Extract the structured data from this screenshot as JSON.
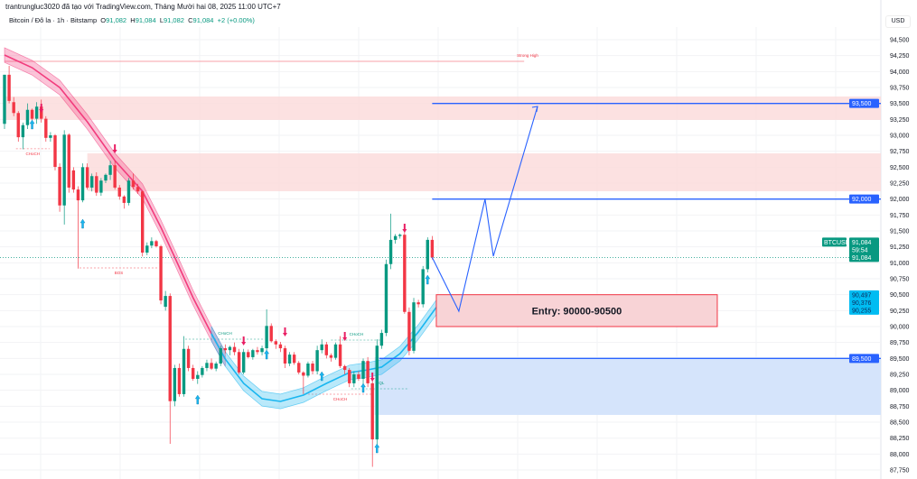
{
  "header": {
    "attribution": "trantrungluc3020 đã tạo với TradingView.com, Tháng Mười hai 08, 2025 11:00 UTC+7",
    "symbol_line": "Bitcoin / Đô la · 1h · Bitstamp",
    "open_label": "O",
    "open": "91,082",
    "high_label": "H",
    "high": "91,084",
    "low_label": "L",
    "low": "91,082",
    "close_label": "C",
    "close": "91,084",
    "change": "+2 (+0.00%)"
  },
  "axis": {
    "currency": "USD",
    "ticks": [
      "94,500",
      "94,250",
      "94,000",
      "93,750",
      "93,500",
      "93,250",
      "93,000",
      "92,750",
      "92,500",
      "92,250",
      "92,000",
      "91,750",
      "91,500",
      "91,250",
      "91,000",
      "90,750",
      "90,500",
      "90,250",
      "90,000",
      "89,750",
      "89,500",
      "89,250",
      "89,000",
      "88,750",
      "88,500",
      "88,250",
      "88,000",
      "87,750"
    ]
  },
  "price_badges": {
    "symbol": "BTCUSD",
    "last_price": "91,084",
    "countdown": "59:54",
    "last_price_2": "91,084",
    "band_values": [
      "90,497",
      "90,376",
      "90,255"
    ],
    "levels": [
      "93,500",
      "92,000",
      "89,500"
    ]
  },
  "colors": {
    "up": "#089981",
    "down": "#f23645",
    "supply_zone": "#fbdcdc",
    "demand_zone": "#d3e3fb",
    "level_line": "#2962ff",
    "band_down": "#f23c7d",
    "band_up": "#19b6f0",
    "badge_blue": "#2962ff",
    "badge_cyan": "#00bcf2"
  },
  "chart_data": {
    "type": "candlestick",
    "symbol": "BTCUSD",
    "timeframe": "1h",
    "ylim": [
      87750,
      94600
    ],
    "grid": true,
    "ohlc": [
      [
        93180,
        93950,
        93100,
        93950
      ],
      [
        93950,
        94090,
        93500,
        93540
      ],
      [
        93520,
        93600,
        93300,
        93350
      ],
      [
        93350,
        93380,
        92900,
        92970
      ],
      [
        92970,
        93200,
        92780,
        93160
      ],
      [
        93160,
        93500,
        93100,
        93400
      ],
      [
        93400,
        93420,
        93200,
        93260
      ],
      [
        93260,
        93520,
        93180,
        93450
      ],
      [
        93450,
        93560,
        93200,
        93260
      ],
      [
        93260,
        93300,
        92900,
        92960
      ],
      [
        92960,
        93050,
        92900,
        93000
      ],
      [
        93000,
        93020,
        92450,
        92505
      ],
      [
        92505,
        92560,
        91800,
        91900
      ],
      [
        91900,
        93080,
        91600,
        93010
      ],
      [
        93010,
        93030,
        92100,
        92180
      ],
      [
        92450,
        92500,
        92100,
        92150
      ],
      [
        92150,
        92200,
        90910,
        91980
      ],
      [
        91980,
        92560,
        91950,
        92500
      ],
      [
        92500,
        92560,
        92150,
        92180
      ],
      [
        92180,
        92400,
        92120,
        92360
      ],
      [
        92360,
        92420,
        92050,
        92100
      ],
      [
        92100,
        92330,
        92050,
        92290
      ],
      [
        92290,
        92400,
        92250,
        92380
      ],
      [
        92380,
        92600,
        92300,
        92530
      ],
      [
        92530,
        92600,
        92150,
        92180
      ],
      [
        92180,
        92220,
        91990,
        92040
      ],
      [
        92040,
        92060,
        91850,
        91940
      ],
      [
        91940,
        92330,
        91900,
        92290
      ],
      [
        92290,
        92400,
        92150,
        92190
      ],
      [
        92190,
        92240,
        92080,
        92120
      ],
      [
        92120,
        92130,
        91100,
        91160
      ],
      [
        91160,
        91320,
        91120,
        91270
      ],
      [
        91270,
        91400,
        91230,
        91340
      ],
      [
        91340,
        91360,
        91240,
        91260
      ],
      [
        91260,
        91280,
        90350,
        90410
      ],
      [
        90310,
        90560,
        90250,
        90480
      ],
      [
        90480,
        90520,
        88160,
        88830
      ],
      [
        88830,
        89400,
        88750,
        89350
      ],
      [
        89350,
        89420,
        88900,
        88940
      ],
      [
        88940,
        89850,
        88900,
        89650
      ],
      [
        89650,
        89700,
        89300,
        89350
      ],
      [
        89350,
        89400,
        89150,
        89180
      ],
      [
        89180,
        89300,
        89100,
        89240
      ],
      [
        89240,
        89380,
        89200,
        89350
      ],
      [
        89350,
        89480,
        89300,
        89430
      ],
      [
        89430,
        89500,
        89320,
        89340
      ],
      [
        89340,
        89450,
        89300,
        89420
      ],
      [
        89420,
        89700,
        89380,
        89660
      ],
      [
        89660,
        89720,
        89580,
        89630
      ],
      [
        89630,
        89700,
        89550,
        89680
      ],
      [
        89680,
        89750,
        89550,
        89600
      ],
      [
        89600,
        89650,
        89250,
        89280
      ],
      [
        89280,
        89650,
        89250,
        89600
      ],
      [
        89600,
        89640,
        89500,
        89520
      ],
      [
        89520,
        89650,
        89480,
        89630
      ],
      [
        89630,
        89680,
        89560,
        89600
      ],
      [
        89600,
        89700,
        89550,
        89660
      ],
      [
        89660,
        90270,
        89600,
        90010
      ],
      [
        90010,
        90050,
        89750,
        89770
      ],
      [
        89770,
        89800,
        89650,
        89720
      ],
      [
        89720,
        89760,
        89600,
        89660
      ],
      [
        89660,
        89700,
        89350,
        89420
      ],
      [
        89420,
        89600,
        89380,
        89560
      ],
      [
        89560,
        89600,
        89400,
        89430
      ],
      [
        89430,
        89460,
        89250,
        89280
      ],
      [
        89280,
        89300,
        88940,
        89230
      ],
      [
        89230,
        89450,
        89200,
        89420
      ],
      [
        89420,
        89460,
        89250,
        89300
      ],
      [
        89300,
        89700,
        89250,
        89630
      ],
      [
        89630,
        89800,
        89580,
        89720
      ],
      [
        89720,
        89760,
        89500,
        89550
      ],
      [
        89550,
        89580,
        89450,
        89510
      ],
      [
        89510,
        89750,
        89480,
        89720
      ],
      [
        89720,
        89850,
        89350,
        89380
      ],
      [
        89380,
        89400,
        89250,
        89320
      ],
      [
        89320,
        89350,
        89050,
        89110
      ],
      [
        89110,
        89300,
        89050,
        89250
      ],
      [
        89250,
        89300,
        89150,
        89180
      ],
      [
        89180,
        89500,
        89100,
        89460
      ],
      [
        89460,
        89520,
        89050,
        89110
      ],
      [
        89110,
        89150,
        87800,
        88230
      ],
      [
        88230,
        89800,
        88150,
        89700
      ],
      [
        89700,
        89950,
        89650,
        89900
      ],
      [
        89900,
        91050,
        89850,
        90980
      ],
      [
        90980,
        91770,
        90900,
        91360
      ],
      [
        91360,
        91450,
        91300,
        91420
      ],
      [
        91420,
        91460,
        91380,
        91440
      ],
      [
        91440,
        91520,
        90200,
        90230
      ],
      [
        90230,
        90300,
        89550,
        89620
      ],
      [
        89620,
        90450,
        89580,
        90380
      ],
      [
        90380,
        90420,
        90300,
        90350
      ],
      [
        90350,
        90950,
        90300,
        90900
      ],
      [
        90900,
        91400,
        90850,
        91360
      ],
      [
        91360,
        91420,
        91050,
        91084
      ]
    ],
    "trend_band": {
      "points": [
        [
          0,
          94259
        ],
        [
          6,
          94061
        ],
        [
          12,
          93750
        ],
        [
          18,
          93212
        ],
        [
          24,
          92604
        ],
        [
          30,
          92123
        ],
        [
          34,
          91557
        ],
        [
          37,
          91090
        ],
        [
          41,
          90453
        ],
        [
          45,
          89887
        ],
        [
          48,
          89491
        ],
        [
          52,
          89109
        ],
        [
          56,
          88868
        ],
        [
          60,
          88826
        ],
        [
          65,
          88925
        ],
        [
          70,
          89109
        ],
        [
          75,
          89279
        ],
        [
          79,
          89321
        ],
        [
          82,
          89364
        ],
        [
          86,
          89576
        ],
        [
          90,
          89915
        ],
        [
          94,
          90312
        ]
      ],
      "half_width": 115,
      "bearish_until_bar": 46
    },
    "zones": [
      {
        "kind": "supply",
        "from_bar": 0,
        "top": 93609,
        "bottom": 93241
      },
      {
        "kind": "supply",
        "from_bar": 18,
        "top": 92717,
        "bottom": 92123
      },
      {
        "kind": "demand",
        "from_bar": 80.5,
        "top": 89519,
        "bottom": 88614
      }
    ],
    "entry_box": {
      "label": "Entry: 90000-90500",
      "top": 90500,
      "bottom": 90000,
      "from_bar": 93.9,
      "to_bar": 155
    },
    "levels": [
      {
        "price": 93500,
        "from_bar": 93
      },
      {
        "price": 92000,
        "from_bar": 93
      },
      {
        "price": 89500,
        "from_bar": 81.5
      }
    ],
    "strong_high": {
      "label": "Strong High",
      "price": 94160,
      "from_bar": 0,
      "to_bar": 113
    },
    "projection": [
      [
        93,
        91084
      ],
      [
        98.8,
        90241
      ],
      [
        104.5,
        92000
      ],
      [
        106.3,
        91104
      ],
      [
        115.9,
        93453
      ]
    ],
    "structure": [
      {
        "label": "CHoCH",
        "price": 92790,
        "from_bar": 2.5,
        "to_bar": 9.8,
        "color": "down"
      },
      {
        "label": "BOS",
        "price": 90920,
        "from_bar": 16.3,
        "to_bar": 33.4,
        "color": "down"
      },
      {
        "label": "CHoCH",
        "price": 89802,
        "from_bar": 39.3,
        "to_bar": 56.6,
        "color": "up"
      },
      {
        "label": "CHoCH",
        "price": 88939,
        "from_bar": 66,
        "to_bar": 80,
        "color": "down"
      },
      {
        "label": "CHoCH",
        "price": 89788,
        "from_bar": 71,
        "to_bar": 82,
        "color": "up"
      },
      {
        "label": "EQL",
        "price": 89024,
        "from_bar": 75.4,
        "to_bar": 88,
        "color": "up"
      }
    ],
    "signals": [
      {
        "bar": 6,
        "dir": "up",
        "price": 93170
      },
      {
        "bar": 8,
        "dir": "down",
        "price": 93425
      },
      {
        "bar": 17,
        "dir": "up",
        "price": 91613
      },
      {
        "bar": 24,
        "dir": "down",
        "price": 92788
      },
      {
        "bar": 42,
        "dir": "up",
        "price": 88854
      },
      {
        "bar": 52,
        "dir": "down",
        "price": 89774
      },
      {
        "bar": 57,
        "dir": "up",
        "price": 89561
      },
      {
        "bar": 61,
        "dir": "down",
        "price": 89915
      },
      {
        "bar": 69,
        "dir": "up",
        "price": 89222
      },
      {
        "bar": 74,
        "dir": "down",
        "price": 89845
      },
      {
        "bar": 78,
        "dir": "up",
        "price": 89038
      },
      {
        "bar": 80,
        "dir": "down",
        "price": 89208
      },
      {
        "bar": 81,
        "dir": "up",
        "price": 88090
      },
      {
        "bar": 87,
        "dir": "down",
        "price": 91543
      },
      {
        "bar": 92,
        "dir": "up",
        "price": 90736
      }
    ],
    "last_price": 91084
  }
}
